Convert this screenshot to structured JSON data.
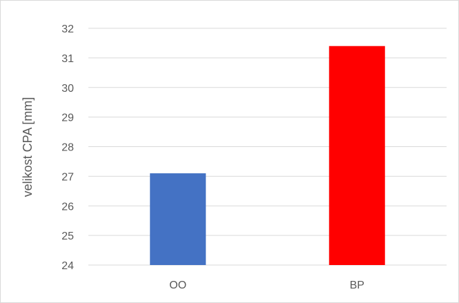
{
  "chart_data": {
    "type": "bar",
    "title": "",
    "xlabel": "",
    "ylabel": "velikost CPA [mm]",
    "categories": [
      "OO",
      "BP"
    ],
    "values": [
      27.1,
      31.4
    ],
    "colors": [
      "#4472C4",
      "#FF0000"
    ],
    "ylim": [
      24,
      32
    ],
    "yticks": [
      24,
      25,
      26,
      27,
      28,
      29,
      30,
      31,
      32
    ],
    "grid": true,
    "legend": "none"
  }
}
